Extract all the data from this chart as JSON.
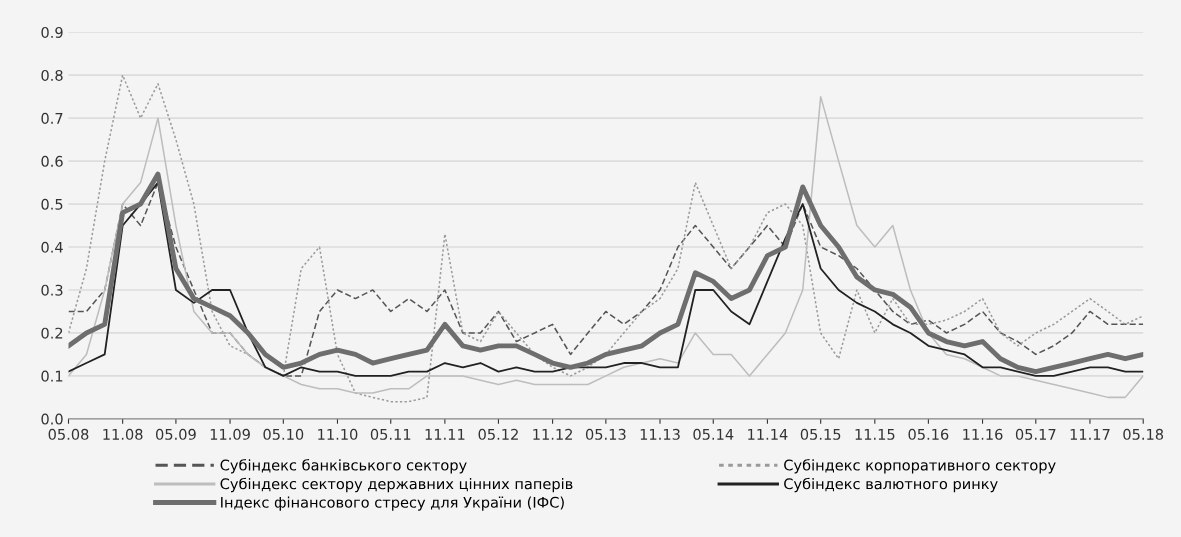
{
  "chart_data": {
    "type": "line",
    "x": [
      "2008-05",
      "2008-07",
      "2008-09",
      "2008-11",
      "2009-01",
      "2009-03",
      "2009-05",
      "2009-07",
      "2009-09",
      "2009-11",
      "2010-01",
      "2010-03",
      "2010-05",
      "2010-07",
      "2010-09",
      "2010-11",
      "2011-01",
      "2011-03",
      "2011-05",
      "2011-07",
      "2011-09",
      "2011-11",
      "2012-01",
      "2012-03",
      "2012-05",
      "2012-07",
      "2012-09",
      "2012-11",
      "2013-01",
      "2013-03",
      "2013-05",
      "2013-07",
      "2013-09",
      "2013-11",
      "2014-01",
      "2014-03",
      "2014-05",
      "2014-07",
      "2014-09",
      "2014-11",
      "2015-01",
      "2015-03",
      "2015-05",
      "2015-07",
      "2015-09",
      "2015-11",
      "2016-01",
      "2016-03",
      "2016-05",
      "2016-07",
      "2016-09",
      "2016-11",
      "2017-01",
      "2017-03",
      "2017-05",
      "2017-07",
      "2017-09",
      "2017-11",
      "2018-01",
      "2018-03",
      "2018-05"
    ],
    "series": [
      {
        "name": "Субіндекс банківського сектору",
        "color": "#555555",
        "line_style": "dashed",
        "values": [
          0.25,
          0.25,
          0.3,
          0.5,
          0.45,
          0.55,
          0.4,
          0.3,
          0.2,
          0.2,
          0.15,
          0.12,
          0.1,
          0.1,
          0.25,
          0.3,
          0.28,
          0.3,
          0.25,
          0.28,
          0.25,
          0.3,
          0.2,
          0.2,
          0.25,
          0.18,
          0.2,
          0.22,
          0.15,
          0.2,
          0.25,
          0.22,
          0.25,
          0.3,
          0.4,
          0.45,
          0.4,
          0.35,
          0.4,
          0.45,
          0.4,
          0.5,
          0.4,
          0.38,
          0.35,
          0.3,
          0.25,
          0.22,
          0.23,
          0.2,
          0.22,
          0.25,
          0.2,
          0.18,
          0.15,
          0.17,
          0.2,
          0.25,
          0.22,
          0.22,
          0.22
        ]
      },
      {
        "name": "Субіндекс корпоративного сектору",
        "color": "#9a9a9a",
        "line_style": "dotted",
        "values": [
          0.2,
          0.35,
          0.6,
          0.8,
          0.7,
          0.78,
          0.65,
          0.5,
          0.25,
          0.17,
          0.15,
          0.12,
          0.1,
          0.35,
          0.4,
          0.15,
          0.06,
          0.05,
          0.04,
          0.04,
          0.05,
          0.43,
          0.2,
          0.18,
          0.25,
          0.2,
          0.15,
          0.12,
          0.1,
          0.12,
          0.15,
          0.2,
          0.25,
          0.28,
          0.35,
          0.55,
          0.45,
          0.35,
          0.4,
          0.48,
          0.5,
          0.45,
          0.2,
          0.14,
          0.3,
          0.2,
          0.28,
          0.22,
          0.22,
          0.23,
          0.25,
          0.28,
          0.2,
          0.17,
          0.2,
          0.22,
          0.25,
          0.28,
          0.25,
          0.22,
          0.24
        ]
      },
      {
        "name": "Субіндекс сектору державних цінних паперів",
        "color": "#bdbdbd",
        "line_style": "solid",
        "values": [
          0.1,
          0.15,
          0.3,
          0.5,
          0.55,
          0.7,
          0.45,
          0.25,
          0.2,
          0.2,
          0.15,
          0.12,
          0.1,
          0.08,
          0.07,
          0.07,
          0.06,
          0.06,
          0.07,
          0.07,
          0.1,
          0.1,
          0.1,
          0.09,
          0.08,
          0.09,
          0.08,
          0.08,
          0.08,
          0.08,
          0.1,
          0.12,
          0.13,
          0.14,
          0.13,
          0.2,
          0.15,
          0.15,
          0.1,
          0.15,
          0.2,
          0.3,
          0.75,
          0.6,
          0.45,
          0.4,
          0.45,
          0.3,
          0.2,
          0.15,
          0.14,
          0.12,
          0.1,
          0.1,
          0.09,
          0.08,
          0.07,
          0.06,
          0.05,
          0.05,
          0.1
        ]
      },
      {
        "name": "Субіндекс валютного ринку",
        "color": "#222222",
        "line_style": "solid",
        "values": [
          0.11,
          0.13,
          0.15,
          0.45,
          0.5,
          0.55,
          0.3,
          0.27,
          0.3,
          0.3,
          0.2,
          0.12,
          0.1,
          0.12,
          0.11,
          0.11,
          0.1,
          0.1,
          0.1,
          0.11,
          0.11,
          0.13,
          0.12,
          0.13,
          0.11,
          0.12,
          0.11,
          0.11,
          0.12,
          0.12,
          0.12,
          0.13,
          0.13,
          0.12,
          0.12,
          0.3,
          0.3,
          0.25,
          0.22,
          0.32,
          0.42,
          0.5,
          0.35,
          0.3,
          0.27,
          0.25,
          0.22,
          0.2,
          0.17,
          0.16,
          0.15,
          0.12,
          0.12,
          0.11,
          0.1,
          0.1,
          0.11,
          0.12,
          0.12,
          0.11,
          0.11
        ]
      },
      {
        "name": "Індекс фінансового стресу для України (ІФС)",
        "color": "#6e6e6e",
        "line_style": "solid",
        "values": [
          0.17,
          0.2,
          0.22,
          0.48,
          0.5,
          0.57,
          0.35,
          0.28,
          0.26,
          0.24,
          0.2,
          0.15,
          0.12,
          0.13,
          0.15,
          0.16,
          0.15,
          0.13,
          0.14,
          0.15,
          0.16,
          0.22,
          0.17,
          0.16,
          0.17,
          0.17,
          0.15,
          0.13,
          0.12,
          0.13,
          0.15,
          0.16,
          0.17,
          0.2,
          0.22,
          0.34,
          0.32,
          0.28,
          0.3,
          0.38,
          0.4,
          0.54,
          0.45,
          0.4,
          0.33,
          0.3,
          0.29,
          0.26,
          0.2,
          0.18,
          0.17,
          0.18,
          0.14,
          0.12,
          0.11,
          0.12,
          0.13,
          0.14,
          0.15,
          0.14,
          0.15
        ]
      }
    ],
    "xlim": [
      "2008-05",
      "2018-05"
    ],
    "xticks": [
      {
        "value": "2008-05",
        "label": "05.08"
      },
      {
        "value": "2008-11",
        "label": "11.08"
      },
      {
        "value": "2009-05",
        "label": "05.09"
      },
      {
        "value": "2009-11",
        "label": "11.09"
      },
      {
        "value": "2010-05",
        "label": "05.10"
      },
      {
        "value": "2010-11",
        "label": "11.10"
      },
      {
        "value": "2011-05",
        "label": "05.11"
      },
      {
        "value": "2011-11",
        "label": "11.11"
      },
      {
        "value": "2012-05",
        "label": "05.12"
      },
      {
        "value": "2012-11",
        "label": "11.12"
      },
      {
        "value": "2013-05",
        "label": "05.13"
      },
      {
        "value": "2013-11",
        "label": "11.13"
      },
      {
        "value": "2014-05",
        "label": "05.14"
      },
      {
        "value": "2014-11",
        "label": "11.14"
      },
      {
        "value": "2015-05",
        "label": "05.15"
      },
      {
        "value": "2015-11",
        "label": "11.15"
      },
      {
        "value": "2016-05",
        "label": "05.16"
      },
      {
        "value": "2016-11",
        "label": "11.16"
      },
      {
        "value": "2017-05",
        "label": "05.17"
      },
      {
        "value": "2017-11",
        "label": "11.17"
      },
      {
        "value": "2018-05",
        "label": "05.18"
      }
    ],
    "ylim": [
      0,
      0.9
    ],
    "yticks": [
      {
        "value": 0,
        "label": "0.0"
      },
      {
        "value": 0.1,
        "label": "0.1"
      },
      {
        "value": 0.2,
        "label": "0.2"
      },
      {
        "value": 0.3,
        "label": "0.3"
      },
      {
        "value": 0.4,
        "label": "0.4"
      },
      {
        "value": 0.5,
        "label": "0.5"
      },
      {
        "value": 0.6,
        "label": "0.6"
      },
      {
        "value": 0.7,
        "label": "0.7"
      },
      {
        "value": 0.8,
        "label": "0.8"
      },
      {
        "value": 0.9,
        "label": "0.9"
      }
    ],
    "grid": "y",
    "legend": "bottom",
    "marker": "none"
  }
}
